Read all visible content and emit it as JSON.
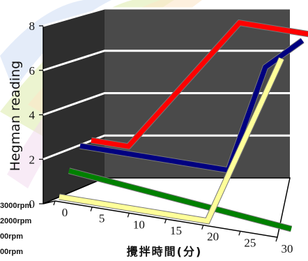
{
  "chart_data": {
    "type": "line",
    "style": "3d-depth-ribbons",
    "ylabel": "Hegman reading",
    "xlabel": "攪拌時間(分)",
    "x_ticks": [
      0,
      5,
      10,
      15,
      20,
      25,
      30
    ],
    "y_ticks": [
      0,
      2,
      4,
      6,
      8
    ],
    "ylim": [
      0,
      8
    ],
    "xlim": [
      0,
      30
    ],
    "grid": "horizontal",
    "legend_position": "left",
    "series": [
      {
        "name": "3000rpm",
        "color": "#ff0000",
        "x": [
          0,
          5,
          20,
          30
        ],
        "y": [
          1.5,
          1.5,
          8,
          8
        ]
      },
      {
        "name": "2000rpm",
        "color": "#000080",
        "x": [
          0,
          20,
          25,
          30
        ],
        "y": [
          1.5,
          1.5,
          6.5,
          8
        ]
      },
      {
        "name": "00rpm",
        "color": "#008000",
        "x": [
          0,
          30
        ],
        "y": [
          1,
          0
        ]
      },
      {
        "name": "00rpm",
        "color": "#ffff99",
        "x": [
          0,
          20,
          30
        ],
        "y": [
          0,
          0,
          8
        ]
      }
    ]
  }
}
